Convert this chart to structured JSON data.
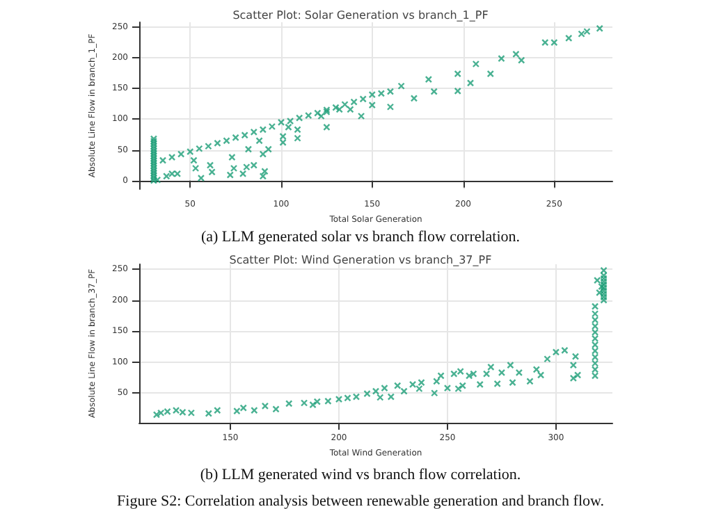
{
  "chart_data": [
    {
      "type": "scatter",
      "title": "Scatter Plot: Solar Generation vs branch_1_PF",
      "xlabel": "Total Solar Generation",
      "ylabel": "Absolute Line Flow in branch_1_PF",
      "annotations": [
        "(a) LLM generated solar vs branch flow correlation."
      ],
      "xlim": [
        22,
        282
      ],
      "ylim": [
        -14,
        258
      ],
      "xticks": [
        50,
        100,
        150,
        200,
        250
      ],
      "yticks": [
        0,
        50,
        100,
        150,
        200,
        250
      ],
      "grid": true,
      "marker": "cross",
      "series": [
        {
          "color": "#1b9e77",
          "x": [
            30,
            30,
            30,
            30,
            30,
            30,
            30,
            30,
            30,
            30,
            30,
            30,
            30,
            30,
            30,
            30,
            30,
            30,
            35,
            40,
            45,
            50,
            55,
            60,
            65,
            70,
            75,
            80,
            85,
            90,
            95,
            100,
            105,
            110,
            115,
            120,
            125,
            130,
            135,
            140,
            145,
            150,
            155,
            160,
            166,
            181,
            197,
            207,
            221,
            229,
            245,
            250,
            258,
            265,
            268,
            275,
            150,
            160,
            173,
            184,
            197,
            204,
            215,
            232,
            52,
            53,
            61,
            62,
            73,
            74,
            79,
            82,
            81,
            85,
            90,
            88,
            91,
            90,
            93,
            101,
            101,
            109,
            56,
            72,
            37,
            40,
            43,
            32,
            104,
            109,
            125,
            132,
            144,
            138,
            122,
            125
          ],
          "values": [
            0,
            4,
            8,
            12,
            16,
            20,
            24,
            28,
            32,
            36,
            40,
            44,
            48,
            52,
            56,
            60,
            64,
            68,
            33,
            38,
            43,
            47,
            52,
            56,
            61,
            65,
            70,
            74,
            79,
            83,
            88,
            95,
            97,
            102,
            106,
            110,
            115,
            119,
            124,
            128,
            133,
            140,
            142,
            145,
            154,
            165,
            174,
            190,
            199,
            206,
            225,
            225,
            232,
            239,
            243,
            248,
            123,
            120,
            134,
            145,
            146,
            159,
            174,
            196,
            33,
            20,
            25,
            14,
            38,
            20,
            11,
            51,
            22,
            25,
            43,
            65,
            15,
            7,
            51,
            62,
            72,
            69,
            4,
            9,
            7,
            11,
            11,
            1,
            87,
            83,
            87,
            116,
            105,
            116,
            105,
            112
          ]
        }
      ]
    },
    {
      "type": "scatter",
      "title": "Scatter Plot: Wind Generation vs branch_37_PF",
      "xlabel": "Total Wind Generation",
      "ylabel": "Absolute Line Flow in branch_37_PF",
      "annotations": [
        "(b) LLM generated wind vs branch flow correlation.",
        "Figure S2: Correlation analysis between renewable generation and branch flow."
      ],
      "xlim": [
        108,
        326
      ],
      "ylim": [
        2,
        258
      ],
      "xticks": [
        150,
        200,
        250,
        300
      ],
      "yticks": [
        50,
        100,
        150,
        200,
        250
      ],
      "grid": true,
      "marker": "cross",
      "series": [
        {
          "color": "#1b9e77",
          "x": [
            116,
            118,
            121,
            125,
            128,
            132,
            140,
            144,
            153,
            156,
            161,
            166,
            171,
            177,
            184,
            188,
            190,
            195,
            200,
            204,
            208,
            213,
            217,
            221,
            219,
            224,
            227,
            230,
            234,
            237,
            238,
            244,
            245,
            247,
            250,
            253,
            255,
            256,
            257,
            260,
            262,
            265,
            268,
            270,
            273,
            275,
            279,
            280,
            283,
            288,
            291,
            293,
            296,
            300,
            304,
            309,
            308,
            310,
            308,
            318,
            318,
            318,
            318,
            318,
            318,
            318,
            318,
            318,
            318,
            318,
            318,
            322,
            322,
            322,
            322,
            322,
            322,
            322,
            322,
            322,
            322,
            320,
            321,
            319
          ],
          "values": [
            15,
            18,
            20,
            22,
            19,
            18,
            17,
            22,
            21,
            26,
            22,
            29,
            24,
            33,
            34,
            31,
            36,
            37,
            40,
            42,
            44,
            49,
            53,
            58,
            43,
            44,
            62,
            53,
            64,
            57,
            67,
            50,
            69,
            78,
            58,
            81,
            57,
            85,
            62,
            78,
            81,
            64,
            81,
            92,
            65,
            83,
            95,
            67,
            83,
            69,
            88,
            79,
            105,
            116,
            119,
            109,
            95,
            79,
            74,
            78,
            88,
            98,
            108,
            118,
            128,
            138,
            148,
            158,
            168,
            178,
            190,
            200,
            210,
            220,
            230,
            240,
            248,
            205,
            215,
            225,
            235,
            212,
            222,
            232
          ]
        }
      ]
    }
  ]
}
